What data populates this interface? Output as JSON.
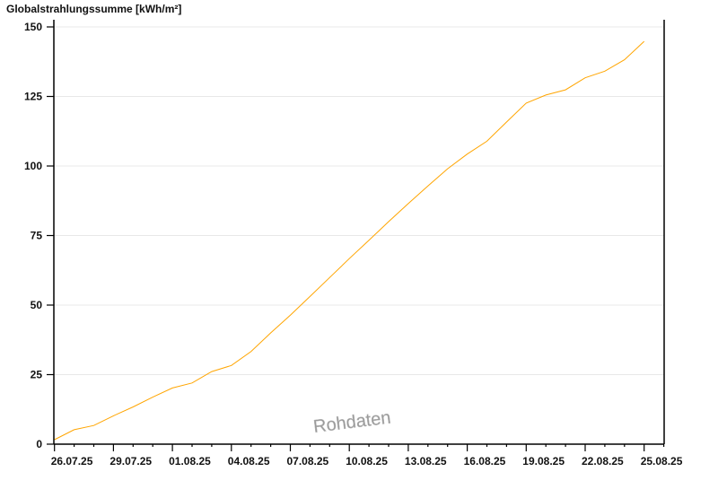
{
  "chart_data": {
    "type": "line",
    "title": "Globalstrahlungssumme [kWh/m²]",
    "xlabel": "",
    "ylabel": "",
    "ylim": [
      0,
      150
    ],
    "yticks": [
      0,
      25,
      50,
      75,
      100,
      125,
      150
    ],
    "xticks": [
      "26.07.25",
      "29.07.25",
      "01.08.25",
      "04.08.25",
      "07.08.25",
      "10.08.25",
      "13.08.25",
      "16.08.25",
      "19.08.25",
      "22.08.25",
      "25.08.25"
    ],
    "grid": true,
    "x": [
      "26.07.25",
      "27.07.25",
      "28.07.25",
      "29.07.25",
      "30.07.25",
      "31.07.25",
      "01.08.25",
      "02.08.25",
      "03.08.25",
      "04.08.25",
      "05.08.25",
      "06.08.25",
      "07.08.25",
      "08.08.25",
      "09.08.25",
      "10.08.25",
      "11.08.25",
      "12.08.25",
      "13.08.25",
      "14.08.25",
      "15.08.25",
      "16.08.25",
      "17.08.25",
      "18.08.25",
      "19.08.25",
      "20.08.25",
      "21.08.25",
      "22.08.25",
      "23.08.25",
      "24.08.25",
      "25.08.25"
    ],
    "series": [
      {
        "color": "#ffa500",
        "values": [
          1.6,
          5.2,
          6.7,
          10.2,
          13.4,
          16.9,
          20.2,
          22.0,
          26.1,
          28.3,
          33.3,
          40.0,
          46.4,
          53.1,
          59.9,
          66.7,
          73.3,
          80.0,
          86.5,
          92.8,
          99.0,
          104.3,
          108.9,
          115.8,
          122.6,
          125.5,
          127.4,
          131.7,
          134.1,
          138.2,
          144.8
        ]
      }
    ],
    "watermark": "Rohdaten"
  }
}
